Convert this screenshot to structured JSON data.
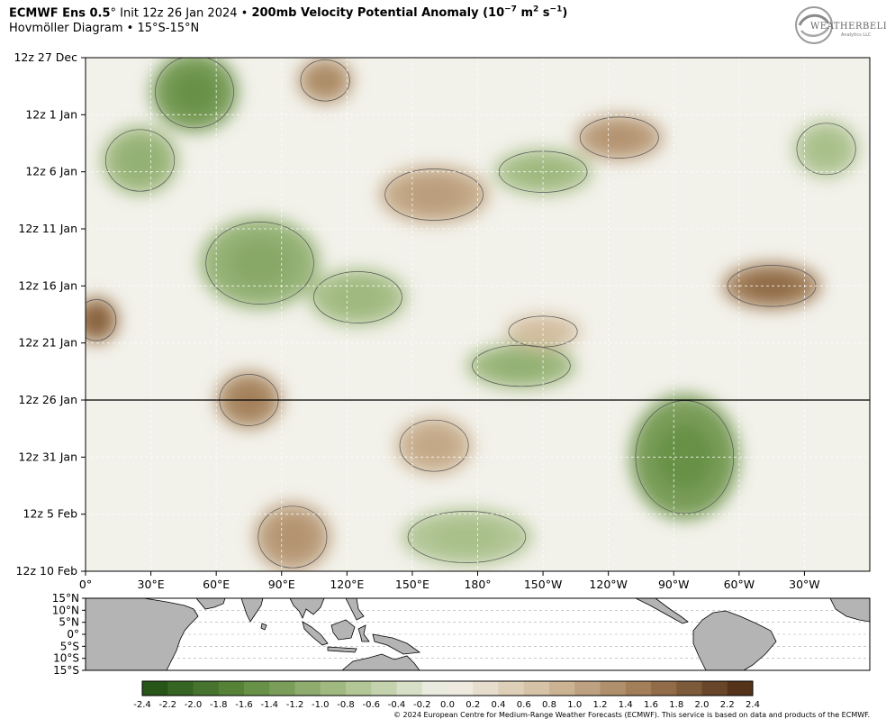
{
  "header": {
    "model": "ECMWF Ens 0.5",
    "deg": "°",
    "init": " Init 12z 26 Jan 2024 • ",
    "field": "200mb Velocity Potential Anomaly (10",
    "exp": "−7",
    "unit_mid": " m",
    "unit_exp2": "2",
    "unit_s": " s",
    "unit_exp3": "−1",
    "unit_close": ")",
    "subtitle": "Hovmöller Diagram • 15°S-15°N"
  },
  "logo": {
    "text": "WEATHERBELL",
    "sub": "Analytics LLC",
    "icon": "swirl-logo-icon"
  },
  "copyright": "© 2024 European Centre for Medium-Range Weather Forecasts (ECMWF). This service is based on data and products of the ECMWF.",
  "colors": {
    "neg_strong": "#1e4d12",
    "neutral": "#f2f1ea",
    "pos_strong": "#4a2a12",
    "contour": "#555555",
    "init_line": "#000000",
    "land": "#b4b4b4"
  },
  "chart_data": {
    "type": "heatmap",
    "title": "200mb Velocity Potential Anomaly",
    "subtitle": "Hovmöller Diagram • 15°S-15°N",
    "xlabel": "",
    "ylabel": "",
    "x_ticks": [
      "0°",
      "30°E",
      "60°E",
      "90°E",
      "120°E",
      "150°E",
      "180°",
      "150°W",
      "120°W",
      "90°W",
      "60°W",
      "30°W"
    ],
    "x_tick_values": [
      0,
      30,
      60,
      90,
      120,
      150,
      180,
      210,
      240,
      270,
      300,
      330
    ],
    "xlim": [
      0,
      360
    ],
    "y_ticks": [
      "12z 27 Dec",
      "12z 1 Jan",
      "12z 6 Jan",
      "12z 11 Jan",
      "12z 16 Jan",
      "12z 21 Jan",
      "12z 26 Jan",
      "12z 31 Jan",
      "12z 5 Feb",
      "12z 10 Feb"
    ],
    "y_tick_values": [
      0,
      5,
      10,
      15,
      20,
      25,
      30,
      35,
      40,
      45
    ],
    "ylim": [
      0,
      45
    ],
    "init_line_day": 30,
    "grid": true,
    "colorbar": {
      "labels": [
        "-2.4",
        "-2.2",
        "-2.0",
        "-1.8",
        "-1.6",
        "-1.4",
        "-1.2",
        "-1.0",
        "-0.8",
        "-0.6",
        "-0.4",
        "-0.2",
        "0.0",
        "0.2",
        "0.4",
        "0.6",
        "0.8",
        "1.0",
        "1.2",
        "1.4",
        "1.6",
        "1.8",
        "2.0",
        "2.2",
        "2.4"
      ],
      "min": -2.4,
      "max": 2.4,
      "step": 0.2
    },
    "anomaly_centers": [
      {
        "lon": 50,
        "day": 3,
        "value": -1.3,
        "width": 40,
        "height": 7
      },
      {
        "lon": 25,
        "day": 9,
        "value": -0.9,
        "width": 35,
        "height": 6
      },
      {
        "lon": 80,
        "day": 18,
        "value": -1.0,
        "width": 55,
        "height": 8
      },
      {
        "lon": 125,
        "day": 21,
        "value": -0.8,
        "width": 45,
        "height": 5
      },
      {
        "lon": 200,
        "day": 27,
        "value": -0.9,
        "width": 50,
        "height": 4
      },
      {
        "lon": 275,
        "day": 35,
        "value": -1.3,
        "width": 50,
        "height": 11
      },
      {
        "lon": 175,
        "day": 42,
        "value": -0.7,
        "width": 60,
        "height": 5
      },
      {
        "lon": 210,
        "day": 10,
        "value": -0.8,
        "width": 45,
        "height": 4
      },
      {
        "lon": 110,
        "day": 2,
        "value": 1.2,
        "width": 25,
        "height": 4
      },
      {
        "lon": 160,
        "day": 12,
        "value": 1.0,
        "width": 50,
        "height": 5
      },
      {
        "lon": 5,
        "day": 23,
        "value": 1.6,
        "width": 20,
        "height": 4
      },
      {
        "lon": 75,
        "day": 30,
        "value": 1.3,
        "width": 30,
        "height": 5
      },
      {
        "lon": 95,
        "day": 42,
        "value": 1.1,
        "width": 35,
        "height": 6
      },
      {
        "lon": 315,
        "day": 20,
        "value": 1.5,
        "width": 45,
        "height": 4
      },
      {
        "lon": 245,
        "day": 7,
        "value": 1.1,
        "width": 40,
        "height": 4
      },
      {
        "lon": 160,
        "day": 34,
        "value": 0.9,
        "width": 35,
        "height": 5
      },
      {
        "lon": 210,
        "day": 24,
        "value": 0.7,
        "width": 35,
        "height": 3
      },
      {
        "lon": 340,
        "day": 8,
        "value": -0.7,
        "width": 30,
        "height": 5
      }
    ]
  },
  "map": {
    "lat_ticks": [
      "15°N",
      "10°N",
      "5°N",
      "0°",
      "5°S",
      "10°S",
      "15°S"
    ],
    "lat_values": [
      15,
      10,
      5,
      0,
      -5,
      -10,
      -15
    ]
  }
}
